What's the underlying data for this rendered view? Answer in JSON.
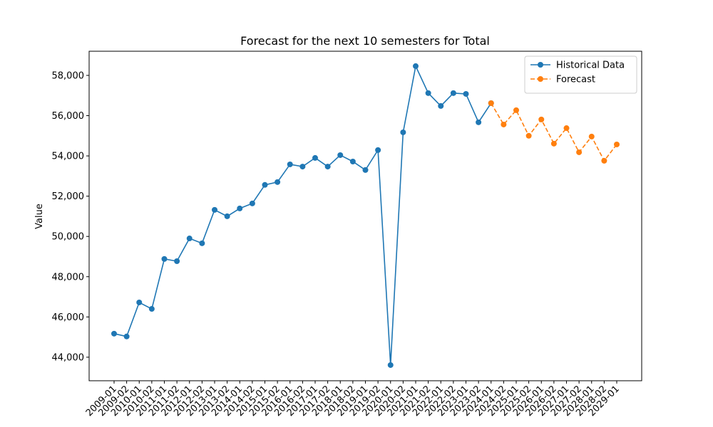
{
  "chart_data": {
    "type": "line",
    "title": "Forecast for the next 10 semesters for Total",
    "ylabel": "Value",
    "categories": [
      "2009-01",
      "2009-02",
      "2010-01",
      "2010-02",
      "2011-01",
      "2011-02",
      "2012-01",
      "2012-02",
      "2013-01",
      "2013-02",
      "2014-01",
      "2014-02",
      "2015-01",
      "2015-02",
      "2016-01",
      "2016-02",
      "2017-01",
      "2017-02",
      "2018-01",
      "2018-02",
      "2019-01",
      "2019-02",
      "2020-01",
      "2020-02",
      "2021-01",
      "2021-02",
      "2022-01",
      "2022-02",
      "2023-01",
      "2023-02",
      "2024-01",
      "2024-02",
      "2025-01",
      "2025-02",
      "2026-01",
      "2026-02",
      "2027-01",
      "2027-02",
      "2028-01",
      "2028-02",
      "2029-01"
    ],
    "series": [
      {
        "name": "Historical Data",
        "color": "#1f77b4",
        "dash": false,
        "values": [
          45170,
          45030,
          46720,
          46400,
          48880,
          48770,
          49900,
          49660,
          51320,
          51000,
          51390,
          51640,
          52560,
          52700,
          53580,
          53470,
          53900,
          53470,
          54040,
          53720,
          53300,
          54290,
          43610,
          55170,
          58460,
          57120,
          56480,
          57120,
          57080,
          55670,
          56620,
          null,
          null,
          null,
          null,
          null,
          null,
          null,
          null,
          null,
          null
        ]
      },
      {
        "name": "Forecast",
        "color": "#ff7f0e",
        "dash": true,
        "values": [
          null,
          null,
          null,
          null,
          null,
          null,
          null,
          null,
          null,
          null,
          null,
          null,
          null,
          null,
          null,
          null,
          null,
          null,
          null,
          null,
          null,
          null,
          null,
          null,
          null,
          null,
          null,
          null,
          null,
          null,
          56620,
          55560,
          56270,
          55000,
          55810,
          54610,
          55380,
          54180,
          54960,
          53760,
          54570
        ]
      }
    ],
    "ylim": [
      42830,
      59200
    ],
    "yticks": [
      {
        "value": 44000,
        "label": "44,000"
      },
      {
        "value": 46000,
        "label": "46,000"
      },
      {
        "value": 48000,
        "label": "48,000"
      },
      {
        "value": 50000,
        "label": "50,000"
      },
      {
        "value": 52000,
        "label": "52,000"
      },
      {
        "value": 54000,
        "label": "54,000"
      },
      {
        "value": 56000,
        "label": "56,000"
      },
      {
        "value": 58000,
        "label": "58,000"
      }
    ],
    "legend": "upper right"
  }
}
